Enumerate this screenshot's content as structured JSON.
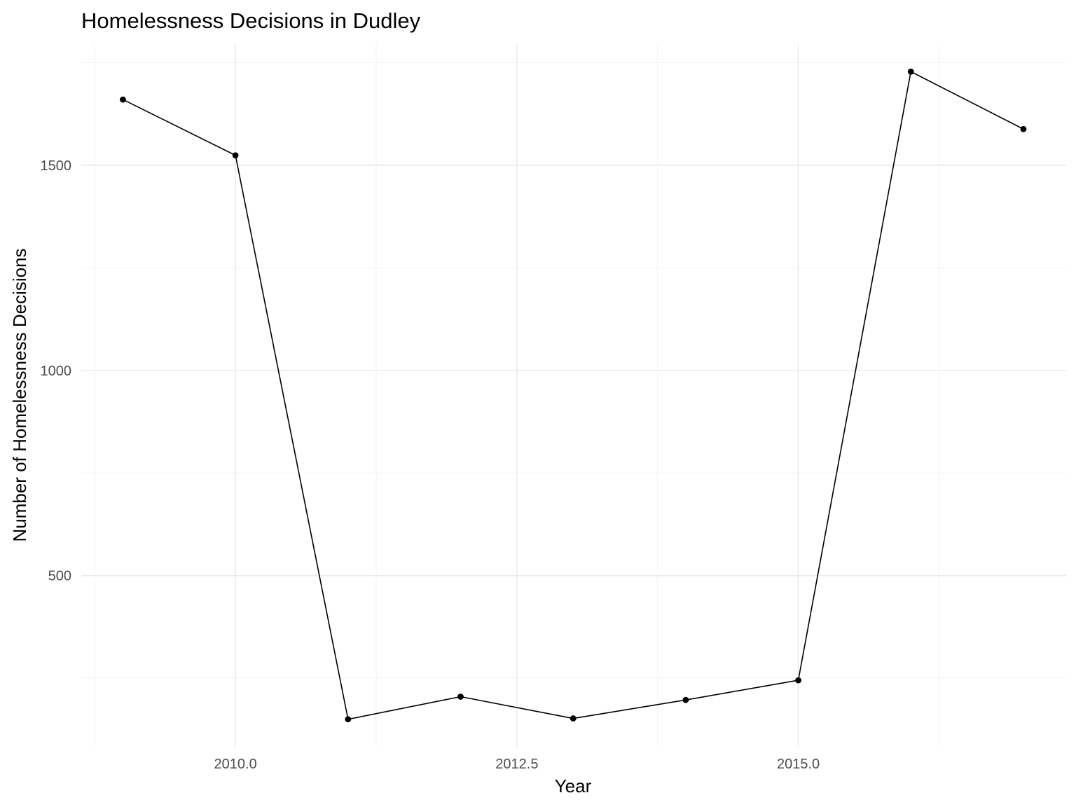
{
  "chart_data": {
    "type": "line",
    "title": "Homelessness Decisions in Dudley",
    "xlabel": "Year",
    "ylabel": "Number of Homelessness Decisions",
    "x": [
      2009,
      2010,
      2011,
      2012,
      2013,
      2014,
      2015,
      2016,
      2017
    ],
    "series": [
      {
        "values": [
          1660,
          1524,
          150,
          205,
          152,
          197,
          245,
          1728,
          1588
        ]
      }
    ],
    "xlim": [
      2008.63,
      2017.38
    ],
    "ylim": [
      83,
      1795
    ],
    "x_ticks": [
      2010,
      2012.5,
      2015
    ],
    "x_tick_labels": [
      "2010.0",
      "2012.5",
      "2015.0"
    ],
    "x_minor_ticks": [
      2008.75,
      2011.25,
      2013.75,
      2016.25
    ],
    "y_ticks": [
      500,
      1000,
      1500
    ],
    "y_tick_labels": [
      "500",
      "1000",
      "1500"
    ],
    "y_minor_ticks": [
      250,
      750,
      1250,
      1750
    ],
    "grid": true,
    "legend": "none",
    "colors": {
      "line": "#000000",
      "points": "#000000",
      "grid": "#ebebeb"
    }
  }
}
